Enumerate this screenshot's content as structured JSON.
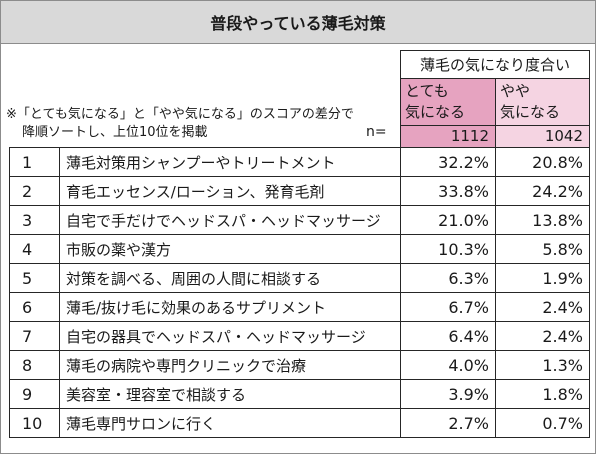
{
  "colors": {
    "title_bg": "#d9d9d9",
    "highly_concerned_bg": "#e6a3c0",
    "somewhat_concerned_bg": "#f5d4e2",
    "border": "#262626"
  },
  "chart_data": {
    "type": "table",
    "title": "普段やっている薄毛対策",
    "note_line1": "※「とても気になる」と「やや気になる」のスコアの差分で",
    "note_line2": "降順ソートし、上位10位を掲載",
    "n_label": "n=",
    "group_header": "薄毛の気になり度合い",
    "columns": [
      {
        "line1": "とても",
        "line2": "気になる",
        "n": "1112"
      },
      {
        "line1": "やや",
        "line2": "気になる",
        "n": "1042"
      }
    ],
    "rows": [
      {
        "rank": "1",
        "label": "薄毛対策用シャンプーやトリートメント",
        "values": [
          "32.2%",
          "20.8%"
        ]
      },
      {
        "rank": "2",
        "label": "育毛エッセンス/ローション、発育毛剤",
        "values": [
          "33.8%",
          "24.2%"
        ]
      },
      {
        "rank": "3",
        "label": "自宅で手だけでヘッドスパ・ヘッドマッサージ",
        "values": [
          "21.0%",
          "13.8%"
        ]
      },
      {
        "rank": "4",
        "label": "市販の薬や漢方",
        "values": [
          "10.3%",
          "5.8%"
        ]
      },
      {
        "rank": "5",
        "label": "対策を調べる、周囲の人間に相談する",
        "values": [
          "6.3%",
          "1.9%"
        ]
      },
      {
        "rank": "6",
        "label": "薄毛/抜け毛に効果のあるサプリメント",
        "values": [
          "6.7%",
          "2.4%"
        ]
      },
      {
        "rank": "7",
        "label": "自宅の器具でヘッドスパ・ヘッドマッサージ",
        "values": [
          "6.4%",
          "2.4%"
        ]
      },
      {
        "rank": "8",
        "label": "薄毛の病院や専門クリニックで治療",
        "values": [
          "4.0%",
          "1.3%"
        ]
      },
      {
        "rank": "9",
        "label": "美容室・理容室で相談する",
        "values": [
          "3.9%",
          "1.8%"
        ]
      },
      {
        "rank": "10",
        "label": "薄毛専門サロンに行く",
        "values": [
          "2.7%",
          "0.7%"
        ]
      }
    ]
  }
}
